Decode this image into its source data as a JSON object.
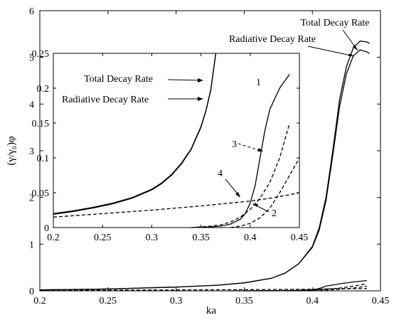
{
  "chart_data": [
    {
      "id": "main",
      "type": "line",
      "xlabel": "ka",
      "ylabel": "(γ/γ₀)φ",
      "xlim": [
        0.2,
        0.45
      ],
      "ylim": [
        0,
        6
      ],
      "xticks": [
        "0.2",
        "0.25",
        "0.3",
        "0.35",
        "0.4",
        "0.45"
      ],
      "yticks": [
        "0",
        "1",
        "2",
        "3",
        "4",
        "5",
        "6"
      ],
      "grid": false,
      "series": [
        {
          "name": "Total Decay Rate",
          "style": "solid",
          "x": [
            0.2,
            0.25,
            0.3,
            0.33,
            0.35,
            0.37,
            0.38,
            0.39,
            0.4,
            0.405,
            0.41,
            0.415,
            0.42,
            0.425,
            0.43,
            0.435,
            0.44,
            0.442
          ],
          "y": [
            0.02,
            0.04,
            0.08,
            0.12,
            0.17,
            0.27,
            0.38,
            0.58,
            0.95,
            1.35,
            2.0,
            3.0,
            4.1,
            4.8,
            5.2,
            5.35,
            5.33,
            5.3
          ]
        },
        {
          "name": "Radiative Decay Rate",
          "style": "solid",
          "x": [
            0.2,
            0.25,
            0.3,
            0.33,
            0.35,
            0.37,
            0.38,
            0.39,
            0.4,
            0.405,
            0.41,
            0.415,
            0.42,
            0.425,
            0.43,
            0.435,
            0.44,
            0.442
          ],
          "y": [
            0.02,
            0.04,
            0.08,
            0.12,
            0.17,
            0.27,
            0.38,
            0.58,
            0.93,
            1.3,
            1.93,
            2.9,
            3.95,
            4.65,
            5.03,
            5.16,
            5.12,
            5.08
          ]
        },
        {
          "name": "1",
          "style": "solid",
          "x": [
            0.35,
            0.38,
            0.39,
            0.4,
            0.405,
            0.41,
            0.42,
            0.43,
            0.44
          ],
          "y": [
            0,
            0.002,
            0.008,
            0.02,
            0.05,
            0.1,
            0.15,
            0.19,
            0.22
          ]
        },
        {
          "name": "3",
          "style": "dashed",
          "x": [
            0.34,
            0.37,
            0.39,
            0.4,
            0.41,
            0.42,
            0.43,
            0.44
          ],
          "y": [
            0,
            0.005,
            0.012,
            0.02,
            0.035,
            0.06,
            0.1,
            0.15
          ]
        },
        {
          "name": "4",
          "style": "dashed",
          "x": [
            0.2,
            0.3,
            0.35,
            0.4,
            0.42,
            0.44
          ],
          "y": [
            0.01,
            0.02,
            0.025,
            0.035,
            0.045,
            0.05
          ]
        },
        {
          "name": "2",
          "style": "dashed",
          "x": [
            0.38,
            0.4,
            0.41,
            0.42,
            0.43,
            0.44
          ],
          "y": [
            0,
            0.005,
            0.015,
            0.035,
            0.06,
            0.1
          ]
        }
      ],
      "annotations": [
        "Total Decay Rate",
        "Radiative Decay Rate"
      ]
    },
    {
      "id": "inset",
      "type": "line",
      "xlim": [
        0.2,
        0.45
      ],
      "ylim": [
        0,
        0.25
      ],
      "xticks": [
        "0.2",
        "0.25",
        "0.3",
        "0.35",
        "0.4",
        "0.45"
      ],
      "yticks": [
        "0",
        "0.05",
        "0.1",
        "0.15",
        "0.2",
        "0.25"
      ],
      "grid": false,
      "series": [
        {
          "name": "Total Decay Rate",
          "style": "solid",
          "x": [
            0.2,
            0.22,
            0.24,
            0.26,
            0.28,
            0.3,
            0.31,
            0.32,
            0.33,
            0.34,
            0.35,
            0.355,
            0.36,
            0.365
          ],
          "y": [
            0.02,
            0.024,
            0.029,
            0.035,
            0.043,
            0.055,
            0.064,
            0.076,
            0.092,
            0.113,
            0.145,
            0.168,
            0.198,
            0.25
          ]
        },
        {
          "name": "Radiative Decay Rate",
          "style": "solid",
          "x": [
            0.2,
            0.22,
            0.24,
            0.26,
            0.28,
            0.3,
            0.31,
            0.32,
            0.33,
            0.34,
            0.35,
            0.355,
            0.36,
            0.365
          ],
          "y": [
            0.019,
            0.023,
            0.028,
            0.034,
            0.042,
            0.054,
            0.063,
            0.075,
            0.091,
            0.112,
            0.144,
            0.167,
            0.197,
            0.25
          ]
        },
        {
          "name": "1",
          "style": "solid",
          "x": [
            0.34,
            0.36,
            0.37,
            0.38,
            0.39,
            0.395,
            0.4,
            0.405,
            0.41,
            0.415,
            0.42,
            0.43,
            0.44
          ],
          "y": [
            0,
            0.001,
            0.002,
            0.005,
            0.012,
            0.02,
            0.035,
            0.06,
            0.1,
            0.14,
            0.17,
            0.2,
            0.22
          ]
        },
        {
          "name": "3",
          "style": "dashed",
          "x": [
            0.34,
            0.36,
            0.37,
            0.38,
            0.39,
            0.4,
            0.41,
            0.42,
            0.43,
            0.44
          ],
          "y": [
            0,
            0.002,
            0.004,
            0.008,
            0.015,
            0.026,
            0.042,
            0.065,
            0.1,
            0.15
          ]
        },
        {
          "name": "4",
          "style": "dashed",
          "x": [
            0.2,
            0.25,
            0.3,
            0.35,
            0.4,
            0.42,
            0.44,
            0.45
          ],
          "y": [
            0.015,
            0.02,
            0.025,
            0.031,
            0.038,
            0.042,
            0.047,
            0.05
          ]
        },
        {
          "name": "2",
          "style": "dashed",
          "x": [
            0.38,
            0.39,
            0.4,
            0.41,
            0.42,
            0.43,
            0.44,
            0.45
          ],
          "y": [
            0,
            0.002,
            0.006,
            0.014,
            0.028,
            0.05,
            0.075,
            0.1
          ]
        }
      ],
      "annotations": [
        "Total Decay Rate",
        "Radiative Decay Rate",
        "1",
        "2",
        "3",
        "4"
      ]
    }
  ]
}
